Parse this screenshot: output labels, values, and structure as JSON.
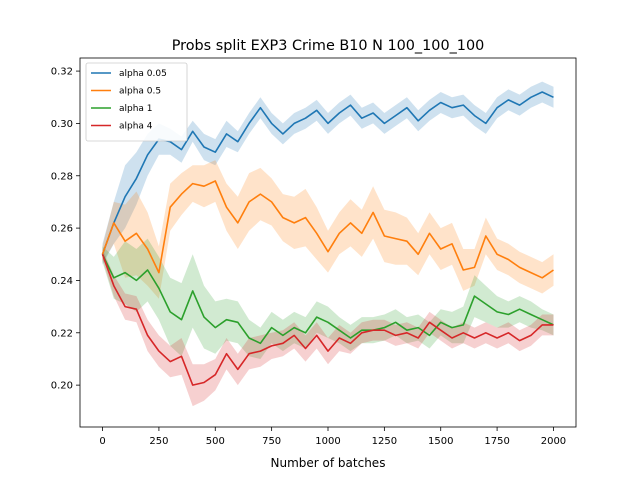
{
  "chart_data": {
    "type": "line",
    "title": "Probs split EXP3 Crime B10 N 100_100_100",
    "xlabel": "Number of batches",
    "ylabel": "",
    "xlim": [
      -100,
      2100
    ],
    "ylim": [
      0.184,
      0.325
    ],
    "xticks": [
      0,
      250,
      500,
      750,
      1000,
      1250,
      1500,
      1750,
      2000
    ],
    "xtick_labels": [
      "0",
      "250",
      "500",
      "750",
      "1000",
      "1250",
      "1500",
      "1750",
      "2000"
    ],
    "yticks": [
      0.2,
      0.22,
      0.24,
      0.26,
      0.28,
      0.3,
      0.32
    ],
    "ytick_labels": [
      "0.20",
      "0.22",
      "0.24",
      "0.26",
      "0.28",
      "0.30",
      "0.32"
    ],
    "grid": false,
    "legend_position": "top-left",
    "x": [
      0,
      50,
      100,
      150,
      200,
      250,
      300,
      350,
      400,
      450,
      500,
      550,
      600,
      650,
      700,
      750,
      800,
      850,
      900,
      950,
      1000,
      1050,
      1100,
      1150,
      1200,
      1250,
      1300,
      1350,
      1400,
      1450,
      1500,
      1550,
      1600,
      1650,
      1700,
      1750,
      1800,
      1850,
      1900,
      1950,
      2000
    ],
    "series": [
      {
        "name": "alpha 0.05",
        "color": "#1f77b4",
        "values": [
          0.25,
          0.262,
          0.272,
          0.279,
          0.288,
          0.294,
          0.293,
          0.29,
          0.297,
          0.291,
          0.289,
          0.296,
          0.293,
          0.3,
          0.306,
          0.3,
          0.296,
          0.3,
          0.302,
          0.305,
          0.3,
          0.304,
          0.307,
          0.302,
          0.304,
          0.3,
          0.303,
          0.306,
          0.301,
          0.305,
          0.308,
          0.306,
          0.307,
          0.303,
          0.3,
          0.306,
          0.309,
          0.307,
          0.31,
          0.312,
          0.31
        ],
        "band": [
          0.004,
          0.008,
          0.012,
          0.01,
          0.008,
          0.006,
          0.005,
          0.005,
          0.004,
          0.005,
          0.005,
          0.005,
          0.004,
          0.004,
          0.004,
          0.004,
          0.004,
          0.004,
          0.004,
          0.004,
          0.004,
          0.004,
          0.004,
          0.004,
          0.004,
          0.004,
          0.004,
          0.004,
          0.004,
          0.004,
          0.004,
          0.004,
          0.004,
          0.004,
          0.004,
          0.004,
          0.004,
          0.004,
          0.004,
          0.004,
          0.004
        ]
      },
      {
        "name": "alpha 0.5",
        "color": "#ff7f0e",
        "values": [
          0.25,
          0.262,
          0.255,
          0.258,
          0.252,
          0.243,
          0.268,
          0.273,
          0.277,
          0.276,
          0.278,
          0.268,
          0.262,
          0.27,
          0.273,
          0.27,
          0.264,
          0.262,
          0.264,
          0.258,
          0.251,
          0.258,
          0.262,
          0.258,
          0.266,
          0.257,
          0.256,
          0.255,
          0.25,
          0.258,
          0.252,
          0.254,
          0.244,
          0.245,
          0.257,
          0.25,
          0.248,
          0.245,
          0.243,
          0.241,
          0.244
        ],
        "band": [
          0.003,
          0.008,
          0.014,
          0.016,
          0.014,
          0.01,
          0.009,
          0.008,
          0.007,
          0.008,
          0.008,
          0.009,
          0.01,
          0.011,
          0.01,
          0.009,
          0.009,
          0.01,
          0.011,
          0.01,
          0.008,
          0.008,
          0.009,
          0.009,
          0.01,
          0.01,
          0.01,
          0.009,
          0.008,
          0.008,
          0.008,
          0.008,
          0.008,
          0.007,
          0.007,
          0.006,
          0.006,
          0.006,
          0.006,
          0.006,
          0.006
        ]
      },
      {
        "name": "alpha 1",
        "color": "#2ca02c",
        "values": [
          0.25,
          0.241,
          0.243,
          0.24,
          0.244,
          0.237,
          0.228,
          0.225,
          0.236,
          0.226,
          0.222,
          0.225,
          0.224,
          0.218,
          0.216,
          0.222,
          0.219,
          0.222,
          0.22,
          0.226,
          0.224,
          0.221,
          0.218,
          0.221,
          0.221,
          0.222,
          0.224,
          0.221,
          0.222,
          0.219,
          0.224,
          0.222,
          0.223,
          0.234,
          0.231,
          0.228,
          0.227,
          0.229,
          0.227,
          0.225,
          0.223
        ],
        "band": [
          0.003,
          0.008,
          0.012,
          0.012,
          0.012,
          0.012,
          0.013,
          0.014,
          0.014,
          0.012,
          0.01,
          0.008,
          0.008,
          0.007,
          0.006,
          0.006,
          0.006,
          0.006,
          0.006,
          0.006,
          0.006,
          0.005,
          0.005,
          0.005,
          0.005,
          0.005,
          0.005,
          0.005,
          0.005,
          0.005,
          0.005,
          0.006,
          0.007,
          0.008,
          0.007,
          0.006,
          0.005,
          0.005,
          0.005,
          0.004,
          0.004
        ]
      },
      {
        "name": "alpha 4",
        "color": "#d62728",
        "values": [
          0.25,
          0.238,
          0.23,
          0.229,
          0.219,
          0.213,
          0.209,
          0.211,
          0.2,
          0.201,
          0.204,
          0.212,
          0.206,
          0.212,
          0.213,
          0.215,
          0.216,
          0.219,
          0.214,
          0.219,
          0.213,
          0.218,
          0.216,
          0.22,
          0.221,
          0.221,
          0.219,
          0.22,
          0.218,
          0.224,
          0.221,
          0.218,
          0.22,
          0.218,
          0.22,
          0.218,
          0.22,
          0.217,
          0.219,
          0.223,
          0.223
        ],
        "band": [
          0.002,
          0.004,
          0.005,
          0.005,
          0.006,
          0.006,
          0.006,
          0.007,
          0.008,
          0.007,
          0.006,
          0.006,
          0.006,
          0.006,
          0.006,
          0.005,
          0.005,
          0.005,
          0.005,
          0.005,
          0.005,
          0.005,
          0.004,
          0.004,
          0.004,
          0.004,
          0.004,
          0.004,
          0.004,
          0.004,
          0.004,
          0.004,
          0.004,
          0.004,
          0.004,
          0.004,
          0.004,
          0.004,
          0.004,
          0.004,
          0.004
        ]
      }
    ]
  }
}
